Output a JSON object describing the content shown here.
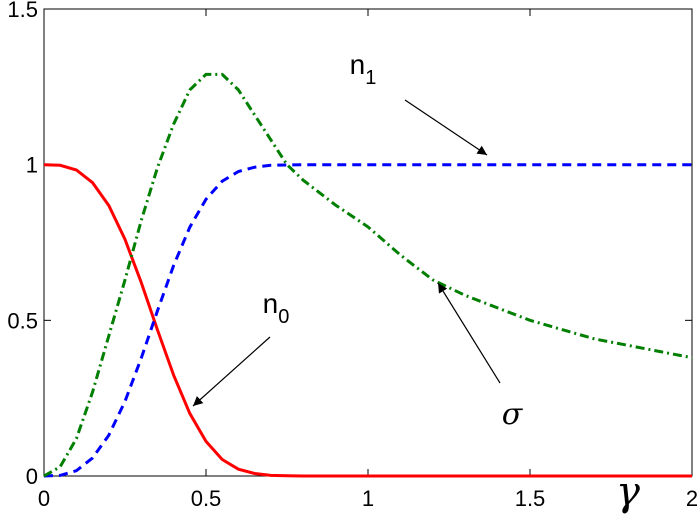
{
  "chart_data": {
    "type": "line",
    "x_label": "γ",
    "x": [
      0,
      0.05,
      0.1,
      0.15,
      0.2,
      0.25,
      0.3,
      0.35,
      0.4,
      0.45,
      0.5,
      0.55,
      0.6,
      0.65,
      0.7,
      0.75,
      0.8,
      0.9,
      1.0,
      1.1,
      1.2,
      1.3,
      1.4,
      1.5,
      1.6,
      1.7,
      1.8,
      1.9,
      2.0
    ],
    "series": [
      {
        "name": "n",
        "subscript": "0",
        "color": "#ff0000",
        "dash": "solid",
        "values": [
          1,
          0.998,
          0.983,
          0.942,
          0.869,
          0.76,
          0.622,
          0.47,
          0.324,
          0.201,
          0.111,
          0.053,
          0.022,
          0.008,
          0.002,
          0.001,
          0,
          0,
          0,
          0,
          0,
          0,
          0,
          0,
          0,
          0,
          0,
          0,
          0
        ]
      },
      {
        "name": "n",
        "subscript": "1",
        "color": "#0000ff",
        "dash": "dashed",
        "values": [
          0,
          0.002,
          0.017,
          0.058,
          0.131,
          0.24,
          0.378,
          0.53,
          0.676,
          0.799,
          0.889,
          0.947,
          0.978,
          0.992,
          0.998,
          0.999,
          1,
          1,
          1,
          1,
          1,
          1,
          1,
          1,
          1,
          1,
          1,
          1,
          1
        ]
      },
      {
        "name": "σ",
        "color": "#007f00",
        "dash": "dashdot",
        "values": [
          0,
          0.03,
          0.12,
          0.27,
          0.45,
          0.63,
          0.82,
          0.99,
          1.13,
          1.24,
          1.29,
          1.29,
          1.24,
          1.16,
          1.08,
          1.0,
          0.95,
          0.87,
          0.8,
          0.71,
          0.63,
          0.58,
          0.54,
          0.5,
          0.47,
          0.44,
          0.42,
          0.4,
          0.38
        ]
      }
    ],
    "xlim": [
      0,
      2
    ],
    "xticks": [
      0,
      0.5,
      1,
      1.5,
      2
    ],
    "ylim": [
      0,
      1.5
    ],
    "yticks": [
      0,
      0.5,
      1,
      1.5
    ]
  }
}
